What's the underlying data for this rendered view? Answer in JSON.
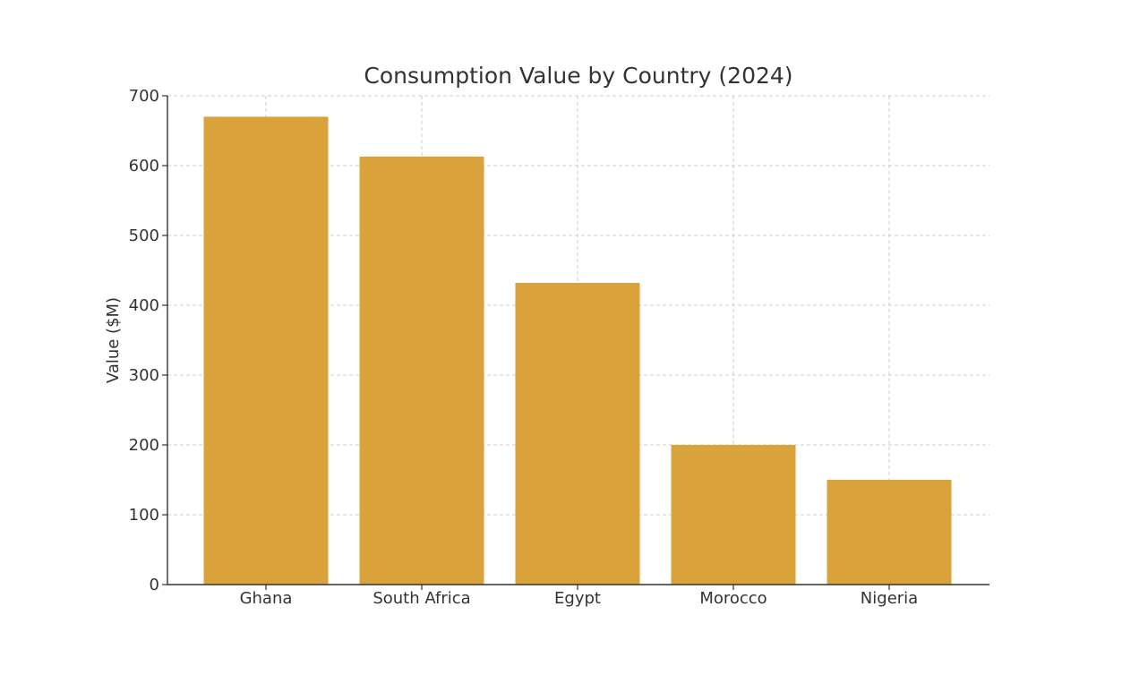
{
  "chart_data": {
    "type": "bar",
    "title": "Consumption Value by Country (2024)",
    "xlabel": "",
    "ylabel": "Value ($M)",
    "categories": [
      "Ghana",
      "South Africa",
      "Egypt",
      "Morocco",
      "Nigeria"
    ],
    "values": [
      670,
      613,
      432,
      200,
      150
    ],
    "ylim": [
      0,
      700
    ],
    "yticks": [
      0,
      100,
      200,
      300,
      400,
      500,
      600,
      700
    ],
    "grid": true,
    "legend": "none",
    "colors": {
      "bar": "#d9a23a",
      "grid": "#cccccc",
      "axis": "#333333",
      "text": "#333333"
    }
  }
}
